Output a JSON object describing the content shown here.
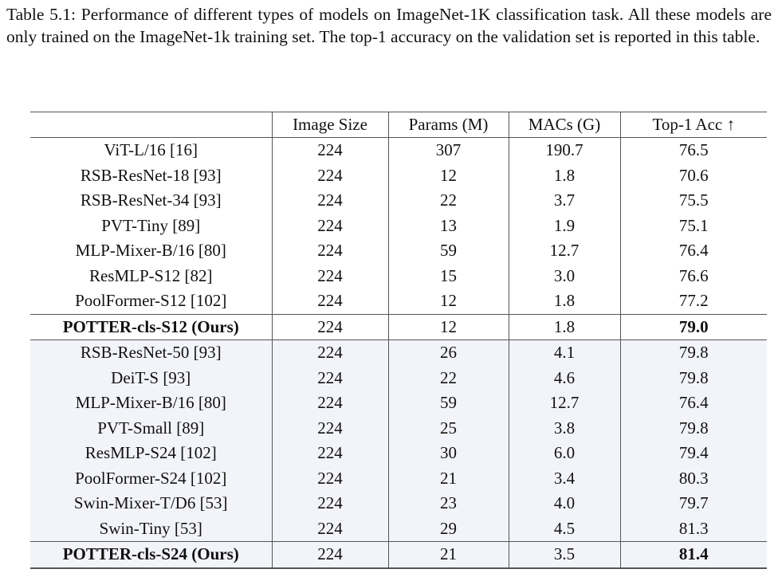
{
  "caption": "Table 5.1: Performance of different types of models on ImageNet-1K classification task. All these models are only trained on the ImageNet-1k training set. The top-1 accuracy on the validation set is reported in this table.",
  "table": {
    "columns": [
      "",
      "Image Size",
      "Params (M)",
      "MACs (G)",
      "Top-1 Acc ↑"
    ],
    "colors": {
      "group2_background": "#f3f4fa",
      "rule": "#555555",
      "text": "#111111"
    },
    "rows": [
      {
        "model": "ViT-L/16 [16]",
        "image_size": "224",
        "params": "307",
        "macs": "190.7",
        "acc": "76.5",
        "group": 1,
        "highlight": false,
        "rule_above": false
      },
      {
        "model": "RSB-ResNet-18 [93]",
        "image_size": "224",
        "params": "12",
        "macs": "1.8",
        "acc": "70.6",
        "group": 1,
        "highlight": false,
        "rule_above": false
      },
      {
        "model": "RSB-ResNet-34 [93]",
        "image_size": "224",
        "params": "22",
        "macs": "3.7",
        "acc": "75.5",
        "group": 1,
        "highlight": false,
        "rule_above": false
      },
      {
        "model": "PVT-Tiny [89]",
        "image_size": "224",
        "params": "13",
        "macs": "1.9",
        "acc": "75.1",
        "group": 1,
        "highlight": false,
        "rule_above": false
      },
      {
        "model": "MLP-Mixer-B/16 [80]",
        "image_size": "224",
        "params": "59",
        "macs": "12.7",
        "acc": "76.4",
        "group": 1,
        "highlight": false,
        "rule_above": false
      },
      {
        "model": "ResMLP-S12 [82]",
        "image_size": "224",
        "params": "15",
        "macs": "3.0",
        "acc": "76.6",
        "group": 1,
        "highlight": false,
        "rule_above": false
      },
      {
        "model": "PoolFormer-S12 [102]",
        "image_size": "224",
        "params": "12",
        "macs": "1.8",
        "acc": "77.2",
        "group": 1,
        "highlight": false,
        "rule_above": false
      },
      {
        "model": "POTTER-cls-S12 (Ours)",
        "image_size": "224",
        "params": "12",
        "macs": "1.8",
        "acc": "79.0",
        "group": 1,
        "highlight": true,
        "rule_above": true
      },
      {
        "model": "RSB-ResNet-50 [93]",
        "image_size": "224",
        "params": "26",
        "macs": "4.1",
        "acc": "79.8",
        "group": 2,
        "highlight": false,
        "rule_above": true
      },
      {
        "model": "DeiT-S [93]",
        "image_size": "224",
        "params": "22",
        "macs": "4.6",
        "acc": "79.8",
        "group": 2,
        "highlight": false,
        "rule_above": false
      },
      {
        "model": "MLP-Mixer-B/16 [80]",
        "image_size": "224",
        "params": "59",
        "macs": "12.7",
        "acc": "76.4",
        "group": 2,
        "highlight": false,
        "rule_above": false
      },
      {
        "model": "PVT-Small [89]",
        "image_size": "224",
        "params": "25",
        "macs": "3.8",
        "acc": "79.8",
        "group": 2,
        "highlight": false,
        "rule_above": false
      },
      {
        "model": "ResMLP-S24 [102]",
        "image_size": "224",
        "params": "30",
        "macs": "6.0",
        "acc": "79.4",
        "group": 2,
        "highlight": false,
        "rule_above": false
      },
      {
        "model": "PoolFormer-S24 [102]",
        "image_size": "224",
        "params": "21",
        "macs": "3.4",
        "acc": "80.3",
        "group": 2,
        "highlight": false,
        "rule_above": false
      },
      {
        "model": "Swin-Mixer-T/D6 [53]",
        "image_size": "224",
        "params": "23",
        "macs": "4.0",
        "acc": "79.7",
        "group": 2,
        "highlight": false,
        "rule_above": false
      },
      {
        "model": "Swin-Tiny [53]",
        "image_size": "224",
        "params": "29",
        "macs": "4.5",
        "acc": "81.3",
        "group": 2,
        "highlight": false,
        "rule_above": false
      },
      {
        "model": "POTTER-cls-S24 (Ours)",
        "image_size": "224",
        "params": "21",
        "macs": "3.5",
        "acc": "81.4",
        "group": 2,
        "highlight": true,
        "rule_above": true
      }
    ]
  }
}
